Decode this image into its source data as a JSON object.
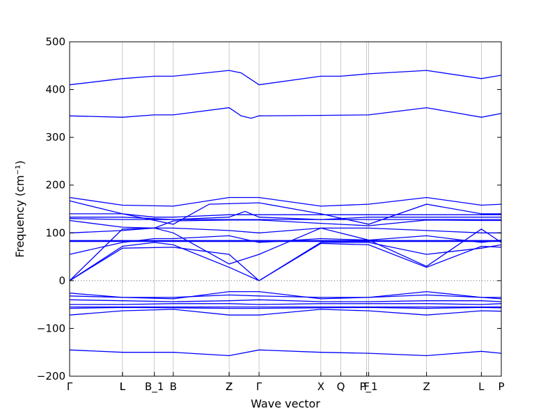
{
  "chart_data": {
    "type": "line",
    "xlabel": "Wave vector",
    "ylabel": "Frequency (cm⁻¹)",
    "ylim": [
      -200,
      500
    ],
    "yticks": [
      -200,
      -100,
      0,
      100,
      200,
      300,
      400,
      500
    ],
    "x_points": [
      {
        "label": "Γ",
        "x": 0.0
      },
      {
        "label": "L",
        "x": 0.53
      },
      {
        "label": "L",
        "x": 0.53
      },
      {
        "label": "B_1",
        "x": 0.85
      },
      {
        "label": "B",
        "x": 1.04
      },
      {
        "label": "Z",
        "x": 1.6
      },
      {
        "label": "Z",
        "x": 1.6
      },
      {
        "label": "Γ",
        "x": 1.9
      },
      {
        "label": "X",
        "x": 2.52
      },
      {
        "label": "Q",
        "x": 2.72
      },
      {
        "label": "F",
        "x": 2.98
      },
      {
        "label": "P_1",
        "x": 3.0
      },
      {
        "label": "Z",
        "x": 3.58
      },
      {
        "label": "L",
        "x": 4.13
      },
      {
        "label": "P",
        "x": 4.33
      }
    ],
    "xlim": [
      0,
      4.33
    ],
    "zero_line": true,
    "line_color": "#0000ff",
    "zero_line_color": "#666666",
    "series": [
      {
        "x": [
          0,
          0.53,
          0.85,
          1.04,
          1.6,
          1.72,
          1.9,
          2.52,
          2.72,
          3.0,
          3.58,
          4.13,
          4.33
        ],
        "y": [
          410,
          423,
          428,
          428,
          440,
          435,
          410,
          428,
          428,
          433,
          440,
          423,
          430
        ]
      },
      {
        "x": [
          0,
          0.53,
          0.85,
          1.04,
          1.6,
          1.72,
          1.82,
          1.9,
          2.52,
          3.0,
          3.58,
          4.13,
          4.33
        ],
        "y": [
          345,
          342,
          347,
          347,
          362,
          345,
          340,
          345,
          346,
          347,
          362,
          342,
          350
        ]
      },
      {
        "x": [
          0,
          0.53,
          1.04,
          1.6,
          1.9,
          2.52,
          3.0,
          3.58,
          4.13,
          4.33
        ],
        "y": [
          174,
          158,
          156,
          174,
          174,
          156,
          160,
          174,
          158,
          160
        ]
      },
      {
        "x": [
          0,
          0.53,
          1.04,
          1.4,
          1.9,
          2.52,
          3.0,
          3.58,
          4.13,
          4.33
        ],
        "y": [
          167,
          140,
          118,
          160,
          163,
          140,
          118,
          160,
          140,
          140
        ]
      },
      {
        "x": [
          0,
          0.53,
          0.85,
          1.04,
          1.6,
          1.9,
          2.52,
          3.0,
          3.58,
          4.13,
          4.33
        ],
        "y": [
          140,
          140,
          133,
          133,
          138,
          138,
          138,
          138,
          138,
          138,
          138
        ]
      },
      {
        "x": [
          0,
          0.53,
          1.04,
          1.6,
          1.76,
          1.9,
          2.52,
          3.0,
          3.58,
          4.13,
          4.33
        ],
        "y": [
          133,
          133,
          128,
          133,
          145,
          133,
          128,
          133,
          133,
          133,
          133
        ]
      },
      {
        "x": [
          0,
          0.53,
          1.04,
          1.6,
          1.9,
          2.52,
          3.0,
          3.58,
          4.13,
          4.33
        ],
        "y": [
          130,
          128,
          128,
          128,
          128,
          128,
          128,
          128,
          128,
          128
        ]
      },
      {
        "x": [
          0,
          0.53,
          0.85,
          1.04,
          1.6,
          1.9,
          2.52,
          3.0,
          3.58,
          4.13,
          4.33
        ],
        "y": [
          126,
          112,
          110,
          125,
          127,
          127,
          120,
          115,
          127,
          126,
          126
        ]
      },
      {
        "x": [
          0,
          0.53,
          0.85,
          1.04,
          1.6,
          1.9,
          2.52,
          3.0,
          3.58,
          4.13,
          4.33
        ],
        "y": [
          100,
          105,
          110,
          110,
          105,
          100,
          110,
          110,
          105,
          100,
          100
        ]
      },
      {
        "x": [
          0,
          0.53,
          0.85,
          1.04,
          1.6,
          1.9,
          2.52,
          3.0,
          3.58,
          4.13,
          4.33
        ],
        "y": [
          55,
          80,
          88,
          88,
          94,
          80,
          88,
          85,
          94,
          80,
          85
        ]
      },
      {
        "x": [
          0,
          0.53,
          1.04,
          1.6,
          1.9,
          2.52,
          3.0,
          3.58,
          4.13,
          4.33
        ],
        "y": [
          84,
          84,
          84,
          84,
          84,
          84,
          84,
          84,
          84,
          84
        ]
      },
      {
        "x": [
          0,
          0.53,
          1.04,
          1.6,
          1.9,
          2.52,
          3.0,
          3.58,
          4.13,
          4.33
        ],
        "y": [
          82,
          82,
          82,
          82,
          82,
          82,
          82,
          82,
          82,
          82
        ]
      },
      {
        "x": [
          0,
          0.53,
          0.85,
          1.04,
          1.6,
          1.9,
          2.52,
          3.0,
          3.58,
          4.13,
          4.33
        ],
        "y": [
          0,
          108,
          110,
          100,
          35,
          55,
          110,
          85,
          30,
          108,
          80
        ]
      },
      {
        "x": [
          0,
          0.53,
          0.85,
          1.04,
          1.6,
          1.9,
          2.52,
          3.0,
          3.58,
          4.13,
          4.33
        ],
        "y": [
          0,
          72,
          80,
          75,
          28,
          0,
          78,
          75,
          28,
          72,
          70
        ]
      },
      {
        "x": [
          0,
          0.53,
          1.04,
          1.6,
          1.9,
          2.52,
          3.0,
          3.58,
          4.13,
          4.33
        ],
        "y": [
          0,
          68,
          70,
          55,
          0,
          80,
          80,
          55,
          68,
          75
        ]
      },
      {
        "x": [
          0,
          0.53,
          1.04,
          1.6,
          1.9,
          2.52,
          3.0,
          3.58,
          4.13,
          4.33
        ],
        "y": [
          -26,
          -35,
          -38,
          -23,
          -23,
          -38,
          -35,
          -23,
          -35,
          -38
        ]
      },
      {
        "x": [
          0,
          0.53,
          1.04,
          1.6,
          1.9,
          2.52,
          3.0,
          3.58,
          4.13,
          4.33
        ],
        "y": [
          -32,
          -35,
          -35,
          -30,
          -32,
          -35,
          -35,
          -30,
          -35,
          -35
        ]
      },
      {
        "x": [
          0,
          0.53,
          1.04,
          1.6,
          1.9,
          2.52,
          3.0,
          3.58,
          4.13,
          4.33
        ],
        "y": [
          -40,
          -42,
          -44,
          -42,
          -40,
          -44,
          -44,
          -42,
          -42,
          -44
        ]
      },
      {
        "x": [
          0,
          0.53,
          1.04,
          1.6,
          1.9,
          2.52,
          3.0,
          3.58,
          4.13,
          4.33
        ],
        "y": [
          -50,
          -50,
          -48,
          -48,
          -50,
          -48,
          -48,
          -48,
          -50,
          -48
        ]
      },
      {
        "x": [
          0,
          0.53,
          1.04,
          1.6,
          1.9,
          2.52,
          3.0,
          3.58,
          4.13,
          4.33
        ],
        "y": [
          -55,
          -55,
          -55,
          -55,
          -55,
          -55,
          -55,
          -55,
          -55,
          -55
        ]
      },
      {
        "x": [
          0,
          0.53,
          1.04,
          1.6,
          1.9,
          2.52,
          3.0,
          3.58,
          4.13,
          4.33
        ],
        "y": [
          -58,
          -56,
          -57,
          -58,
          -58,
          -57,
          -56,
          -58,
          -56,
          -57
        ]
      },
      {
        "x": [
          0,
          0.53,
          1.04,
          1.6,
          1.9,
          2.52,
          3.0,
          3.58,
          4.13,
          4.33
        ],
        "y": [
          -72,
          -63,
          -60,
          -72,
          -72,
          -60,
          -63,
          -72,
          -63,
          -64
        ]
      },
      {
        "x": [
          0,
          0.53,
          1.04,
          1.6,
          1.9,
          2.52,
          3.0,
          3.58,
          4.13,
          4.33
        ],
        "y": [
          -145,
          -150,
          -150,
          -157,
          -145,
          -150,
          -152,
          -157,
          -148,
          -152
        ]
      }
    ]
  }
}
